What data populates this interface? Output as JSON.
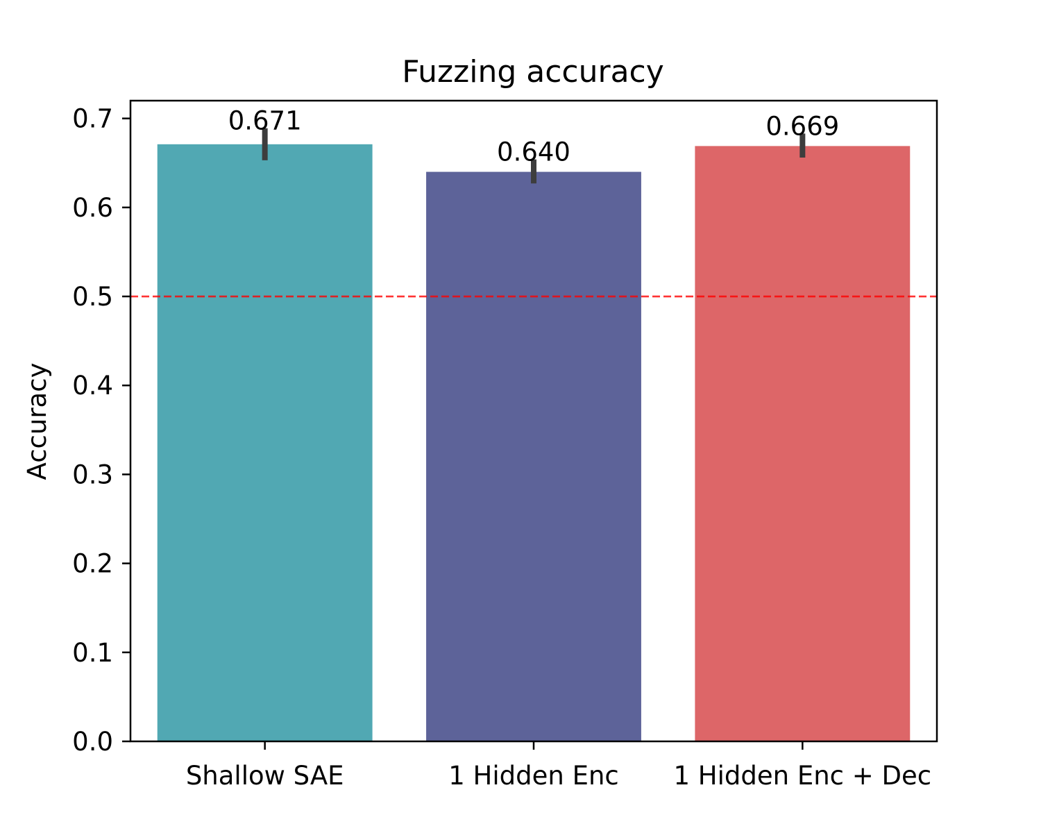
{
  "chart_data": {
    "type": "bar",
    "title": "Fuzzing accuracy",
    "xlabel": "",
    "ylabel": "Accuracy",
    "categories": [
      "Shallow SAE",
      "1 Hidden Enc",
      "1 Hidden Enc + Dec"
    ],
    "values": [
      0.671,
      0.64,
      0.669
    ],
    "value_labels": [
      "0.671",
      "0.640",
      "0.669"
    ],
    "error_bars": [
      {
        "low": 0.653,
        "high": 0.689
      },
      {
        "low": 0.627,
        "high": 0.654
      },
      {
        "low": 0.656,
        "high": 0.683
      }
    ],
    "colors": [
      "#51a8b3",
      "#5d6399",
      "#dd6668"
    ],
    "error_bar_color": "#3d3d3d",
    "ylim": [
      0,
      0.72
    ],
    "yticks": [
      0.0,
      0.1,
      0.2,
      0.3,
      0.4,
      0.5,
      0.6,
      0.7
    ],
    "ytick_labels": [
      "0.0",
      "0.1",
      "0.2",
      "0.3",
      "0.4",
      "0.5",
      "0.6",
      "0.7"
    ],
    "reference_line": {
      "y": 0.5,
      "style": "dashed",
      "color": "#ff0000"
    },
    "grid": false,
    "legend": "none"
  }
}
